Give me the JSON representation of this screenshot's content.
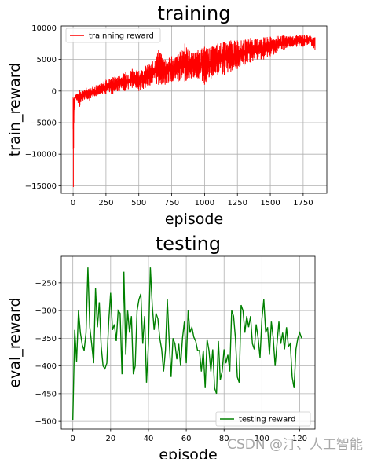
{
  "chart_data": [
    {
      "type": "line",
      "title": "training",
      "xlabel": "episode",
      "ylabel": "train_reward",
      "xlim": [
        -90,
        1930
      ],
      "ylim": [
        -16200,
        10300
      ],
      "xticks": [
        0,
        250,
        500,
        750,
        1000,
        1250,
        1500,
        1750
      ],
      "yticks": [
        -15000,
        -10000,
        -5000,
        0,
        5000,
        10000
      ],
      "grid": true,
      "legend": "top-left",
      "series": [
        {
          "name": "trainning reward",
          "color": "#ff0000",
          "x": [
            0,
            2,
            4,
            6,
            8,
            10,
            15,
            20,
            30,
            50,
            75,
            100,
            125,
            150,
            175,
            200,
            250,
            300,
            350,
            400,
            450,
            500,
            550,
            600,
            650,
            700,
            750,
            800,
            850,
            900,
            950,
            1000,
            1050,
            1100,
            1150,
            1200,
            1250,
            1300,
            1350,
            1400,
            1450,
            1500,
            1550,
            1600,
            1650,
            1700,
            1750,
            1800,
            1840
          ],
          "y_high": [
            -1000,
            -2000,
            -1500,
            -1200,
            -1500,
            -1000,
            -800,
            -600,
            -400,
            200,
            0,
            500,
            400,
            800,
            900,
            1000,
            1800,
            2200,
            2500,
            3000,
            3500,
            3200,
            4000,
            4500,
            6500,
            5000,
            5500,
            5800,
            7500,
            6000,
            6500,
            7000,
            7000,
            7500,
            7800,
            8000,
            8000,
            8100,
            8400,
            8300,
            8500,
            8600,
            8700,
            8800,
            8700,
            8800,
            8900,
            8900,
            8500
          ],
          "y_low": [
            -6000,
            -15200,
            -9000,
            -5000,
            -3000,
            -2000,
            -1500,
            -1200,
            -1500,
            -2500,
            -1500,
            -1200,
            -1500,
            -1000,
            -800,
            -500,
            -500,
            -500,
            0,
            0,
            500,
            0,
            500,
            1000,
            1000,
            1000,
            1500,
            1500,
            1500,
            2000,
            2000,
            1000,
            2000,
            2500,
            2500,
            3000,
            3500,
            4000,
            4500,
            5000,
            5000,
            5500,
            6000,
            6500,
            7000,
            7000,
            7000,
            7500,
            6500
          ]
        }
      ]
    },
    {
      "type": "line",
      "title": "testing",
      "xlabel": "episode",
      "ylabel": "eval_reward",
      "xlim": [
        -6.1,
        128.1
      ],
      "ylim": [
        -514,
        -202
      ],
      "xticks": [
        0,
        20,
        40,
        60,
        80,
        100,
        120
      ],
      "yticks": [
        -500,
        -450,
        -400,
        -350,
        -300,
        -250
      ],
      "grid": true,
      "legend": "bottom-right",
      "series": [
        {
          "name": "testing reward",
          "color": "#008000",
          "x": [
            0,
            1,
            2,
            3,
            4,
            5,
            6,
            7,
            8,
            9,
            10,
            11,
            12,
            13,
            14,
            15,
            16,
            17,
            18,
            19,
            20,
            21,
            22,
            23,
            24,
            25,
            26,
            27,
            28,
            29,
            30,
            31,
            32,
            33,
            34,
            35,
            36,
            37,
            38,
            39,
            40,
            41,
            42,
            43,
            44,
            45,
            46,
            47,
            48,
            49,
            50,
            51,
            52,
            53,
            54,
            55,
            56,
            57,
            58,
            59,
            60,
            61,
            62,
            63,
            64,
            65,
            66,
            67,
            68,
            69,
            70,
            71,
            72,
            73,
            74,
            75,
            76,
            77,
            78,
            79,
            80,
            81,
            82,
            83,
            84,
            85,
            86,
            87,
            88,
            89,
            90,
            91,
            92,
            93,
            94,
            95,
            96,
            97,
            98,
            99,
            100,
            101,
            102,
            103,
            104,
            105,
            106,
            107,
            108,
            109,
            110,
            111,
            112,
            113,
            114,
            115,
            116,
            117,
            118,
            119,
            120,
            121
          ],
          "y": [
            -497,
            -335,
            -392,
            -300,
            -340,
            -362,
            -372,
            -340,
            -222,
            -330,
            -362,
            -395,
            -260,
            -330,
            -285,
            -365,
            -400,
            -405,
            -395,
            -320,
            -268,
            -335,
            -325,
            -355,
            -300,
            -305,
            -415,
            -230,
            -380,
            -300,
            -340,
            -310,
            -415,
            -400,
            -300,
            -280,
            -270,
            -360,
            -310,
            -430,
            -360,
            -222,
            -290,
            -335,
            -305,
            -315,
            -350,
            -370,
            -410,
            -372,
            -280,
            -355,
            -420,
            -350,
            -360,
            -388,
            -360,
            -400,
            -350,
            -320,
            -395,
            -300,
            -340,
            -330,
            -348,
            -355,
            -372,
            -372,
            -410,
            -372,
            -440,
            -352,
            -372,
            -410,
            -370,
            -440,
            -450,
            -355,
            -425,
            -410,
            -370,
            -395,
            -380,
            -410,
            -300,
            -310,
            -350,
            -420,
            -430,
            -290,
            -300,
            -340,
            -310,
            -330,
            -310,
            -360,
            -370,
            -325,
            -350,
            -385,
            -315,
            -280,
            -340,
            -330,
            -380,
            -320,
            -350,
            -400,
            -360,
            -320,
            -360,
            -340,
            -370,
            -330,
            -365,
            -360,
            -420,
            -440,
            -370,
            -350,
            -340,
            -350
          ]
        }
      ]
    }
  ],
  "watermark": "CSDN @汀、人工智能"
}
